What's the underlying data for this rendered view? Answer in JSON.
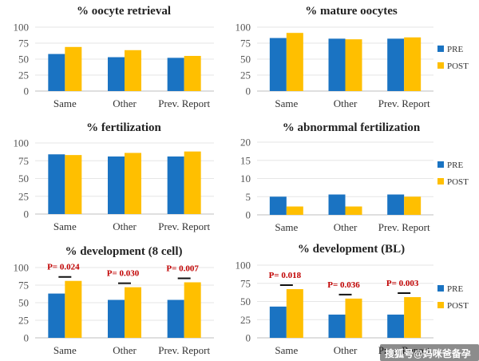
{
  "colors": {
    "pre": "#1a73c2",
    "post": "#ffbf00",
    "axis": "#bfbfbf",
    "grid": "#e6e6e6",
    "pval": "#c00000"
  },
  "watermark_text": "搜狐号@妈咪爸备孕",
  "chart_data": [
    {
      "type": "bar",
      "title": "% oocyte retrieval",
      "categories": [
        "Same",
        "Other",
        "Prev. Report"
      ],
      "yticks": [
        "0",
        "25",
        "50",
        "75",
        "100"
      ],
      "ylim": [
        0,
        100
      ],
      "legend": [],
      "series": [
        {
          "name": "PRE",
          "values": [
            58,
            53,
            52
          ]
        },
        {
          "name": "POST",
          "values": [
            69,
            64,
            55
          ]
        }
      ],
      "annotations": []
    },
    {
      "type": "bar",
      "title": "% mature oocytes",
      "categories": [
        "Same",
        "Other",
        "Prev. Report"
      ],
      "yticks": [
        "0",
        "25",
        "50",
        "75",
        "100"
      ],
      "ylim": [
        0,
        100
      ],
      "legend": [
        "PRE",
        "POST"
      ],
      "series": [
        {
          "name": "PRE",
          "values": [
            83,
            82,
            82
          ]
        },
        {
          "name": "POST",
          "values": [
            91,
            81,
            84
          ]
        }
      ],
      "annotations": []
    },
    {
      "type": "bar",
      "title": "% fertilization",
      "categories": [
        "Same",
        "Other",
        "Prev. Report"
      ],
      "yticks": [
        "0",
        "25",
        "50",
        "75",
        "100"
      ],
      "ylim": [
        0,
        100
      ],
      "legend": [],
      "series": [
        {
          "name": "PRE",
          "values": [
            84,
            81,
            81
          ]
        },
        {
          "name": "POST",
          "values": [
            83,
            86,
            88
          ]
        }
      ],
      "annotations": []
    },
    {
      "type": "bar",
      "title": "% abnormmal fertilization",
      "categories": [
        "Same",
        "Other",
        "Prev. Report"
      ],
      "yticks": [
        "0",
        "5",
        "10",
        "15",
        "20"
      ],
      "ylim": [
        0,
        20
      ],
      "legend": [
        "PRE",
        "POST"
      ],
      "series": [
        {
          "name": "PRE",
          "values": [
            5,
            5.6,
            5.6
          ]
        },
        {
          "name": "POST",
          "values": [
            2.3,
            2.3,
            5
          ]
        }
      ],
      "annotations": []
    },
    {
      "type": "bar",
      "title": "% development (8 cell)",
      "categories": [
        "Same",
        "Other",
        "Prev. Report"
      ],
      "yticks": [
        "0",
        "25",
        "50",
        "75",
        "100"
      ],
      "ylim": [
        0,
        100
      ],
      "legend": [],
      "series": [
        {
          "name": "PRE",
          "values": [
            63,
            54,
            54
          ]
        },
        {
          "name": "POST",
          "values": [
            81,
            72,
            79
          ]
        }
      ],
      "annotations": [
        "P= 0.024",
        "P= 0.030",
        "P= 0.007"
      ]
    },
    {
      "type": "bar",
      "title": "% development (BL)",
      "categories": [
        "Same",
        "Other",
        "Prev. Report"
      ],
      "yticks": [
        "0",
        "25",
        "50",
        "75",
        "100"
      ],
      "ylim": [
        0,
        100
      ],
      "legend": [
        "PRE",
        "POST"
      ],
      "series": [
        {
          "name": "PRE",
          "values": [
            43,
            32,
            32
          ]
        },
        {
          "name": "POST",
          "values": [
            67,
            54,
            56
          ]
        }
      ],
      "annotations": [
        "P= 0.018",
        "P= 0.036",
        "P= 0.003"
      ]
    }
  ]
}
